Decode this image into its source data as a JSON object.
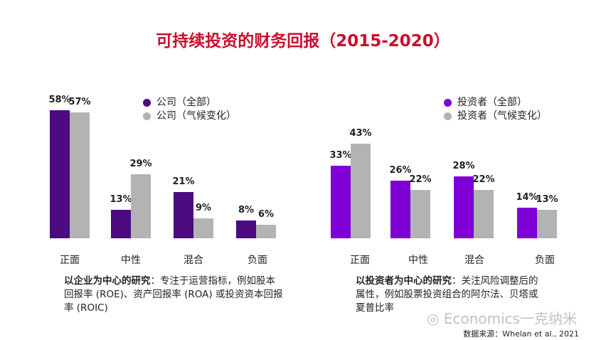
{
  "title": "可持续投资的财务回报（2015-2020）",
  "colors": {
    "company": "#4b0a80",
    "investor": "#7e00d6",
    "gray": "#b3b3b3",
    "title": "#c8102e"
  },
  "chart_data": [
    {
      "type": "bar",
      "title": "",
      "categories": [
        "正面",
        "中性",
        "混合",
        "负面"
      ],
      "series": [
        {
          "name": "公司（全部）",
          "values": [
            58,
            13,
            21,
            8
          ]
        },
        {
          "name": "公司（气候变化）",
          "values": [
            57,
            29,
            9,
            6
          ]
        }
      ],
      "ylim": [
        0,
        60
      ],
      "legend": "top-right",
      "value_suffix": "%"
    },
    {
      "type": "bar",
      "title": "",
      "categories": [
        "正面",
        "中性",
        "混合",
        "负面"
      ],
      "series": [
        {
          "name": "投资者（全部）",
          "values": [
            33,
            26,
            28,
            14
          ]
        },
        {
          "name": "投资者（气候变化）",
          "values": [
            43,
            22,
            22,
            13
          ]
        }
      ],
      "ylim": [
        0,
        60
      ],
      "legend": "top-right",
      "value_suffix": "%"
    }
  ],
  "notes": {
    "left_bold": "以企业为中心的研究",
    "left_text": "：专注于运营指标，例如股本回报率 (ROE)、资产回报率 (ROA) 或投资资本回报率 (ROIC)",
    "right_bold": "以投资者为中心的研究",
    "right_text": "：关注风险调整后的属性，例如股票投资组合的阿尔法、贝塔或夏普比率"
  },
  "source": "数据来源：Whelan et al., 2021",
  "watermark": "Economics一克纳米"
}
